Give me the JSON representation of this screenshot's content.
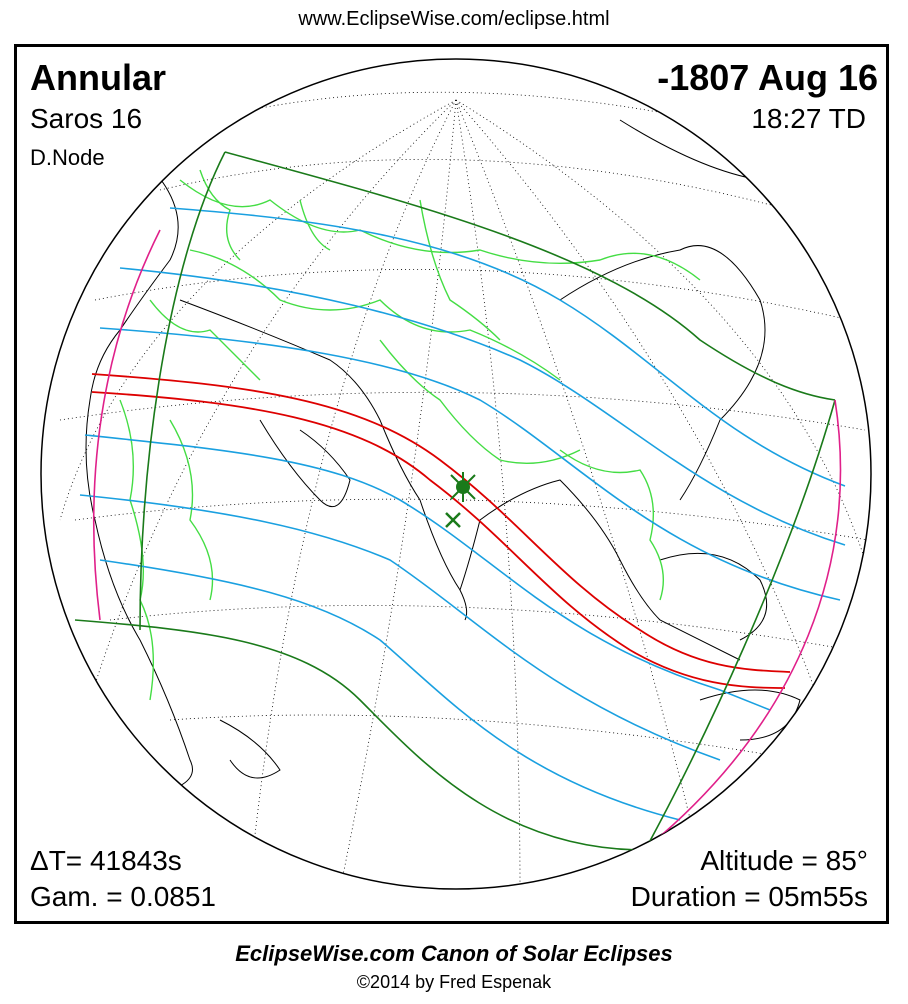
{
  "header_url": "www.EclipseWise.com/eclipse.html",
  "eclipse": {
    "type": "Annular",
    "date": "-1807 Aug 16",
    "saros": "Saros  16",
    "time": "18:27 TD",
    "node": "D.Node",
    "delta_t": "ΔT=  41843s",
    "gamma": "Gam. = 0.0851",
    "altitude": "Altitude = 85°",
    "duration": "Duration = 05m55s"
  },
  "footer": {
    "title": "EclipseWise.com Canon of Solar Eclipses",
    "copyright": "©2014 by Fred Espenak"
  },
  "colors": {
    "central_path": "#dd0000",
    "penumbra_limits": "#1a7a1a",
    "magnitude_lines": "#1aa0e0",
    "sunrise_sunset": "#e0208a",
    "borders": "#44dd44",
    "coastlines": "#000000",
    "graticule": "#000000"
  },
  "markers": {
    "greatest_eclipse": "star-marker",
    "greatest_duration": "x-marker"
  }
}
